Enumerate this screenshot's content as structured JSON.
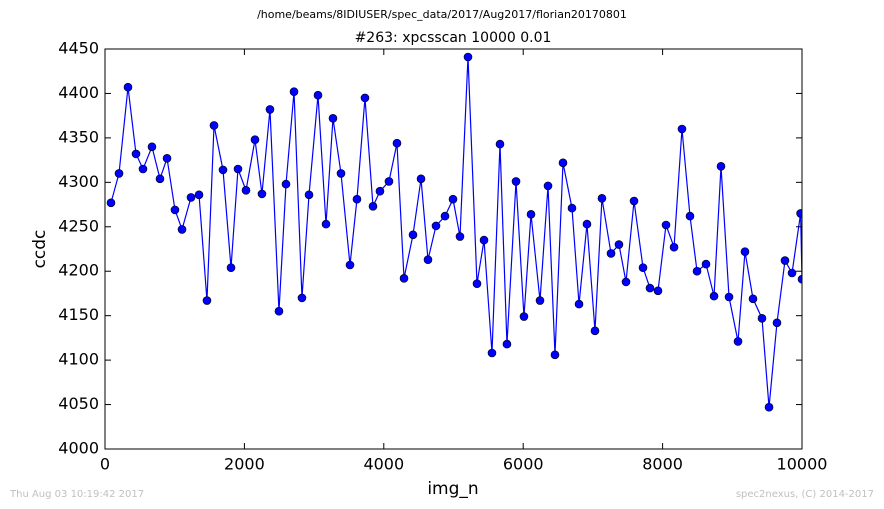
{
  "header": {
    "path": "/home/beams/8IDIUSER/spec_data/2017/Aug2017/florian20170801"
  },
  "chart_data": {
    "type": "line",
    "title": "#263: xpcsscan 10000 0.01",
    "x_label": "img_n",
    "y_label": "ccdc",
    "x": [
      86,
      201,
      330,
      445,
      545,
      674,
      789,
      890,
      1004,
      1105,
      1234,
      1349,
      1463,
      1564,
      1693,
      1808,
      1908,
      2023,
      2152,
      2252,
      2367,
      2496,
      2597,
      2712,
      2826,
      2927,
      3056,
      3171,
      3271,
      3386,
      3515,
      3615,
      3730,
      3845,
      3945,
      4074,
      4189,
      4290,
      4419,
      4534,
      4634,
      4749,
      4878,
      4993,
      5093,
      5208,
      5337,
      5438,
      5552,
      5667,
      5767,
      5897,
      6011,
      6112,
      6241,
      6356,
      6456,
      6571,
      6700,
      6801,
      6915,
      7030,
      7130,
      7260,
      7374,
      7475,
      7590,
      7719,
      7819,
      7934,
      8049,
      8164,
      8278,
      8393,
      8494,
      8623,
      8738,
      8838,
      8953,
      9082,
      9182,
      9297,
      9426,
      9527,
      9641,
      9756,
      9857,
      9980,
      10000
    ],
    "series": [
      {
        "name": "ccdc",
        "color": "#0000ff",
        "values": [
          4277,
          4310,
          4407,
          4332,
          4315,
          4340,
          4304,
          4327,
          4269,
          4247,
          4283,
          4286,
          4167,
          4364,
          4314,
          4204,
          4315,
          4291,
          4348,
          4287,
          4382,
          4155,
          4298,
          4402,
          4170,
          4286,
          4398,
          4253,
          4372,
          4310,
          4207,
          4281,
          4395,
          4273,
          4290,
          4301,
          4344,
          4192,
          4241,
          4304,
          4213,
          4251,
          4262,
          4281,
          4239,
          4441,
          4186,
          4235,
          4108,
          4343,
          4118,
          4301,
          4149,
          4264,
          4167,
          4296,
          4106,
          4322,
          4271,
          4163,
          4253,
          4133,
          4282,
          4220,
          4230,
          4188,
          4279,
          4204,
          4181,
          4178,
          4252,
          4227,
          4360,
          4262,
          4200,
          4208,
          4172,
          4318,
          4171,
          4121,
          4222,
          4169,
          4147,
          4047,
          4142,
          4212,
          4198,
          4265,
          4191
        ]
      }
    ],
    "xlim": [
      0,
      10000
    ],
    "xticks": [
      0,
      2000,
      4000,
      6000,
      8000,
      10000
    ],
    "ylim": [
      4000,
      4450
    ],
    "yticks": [
      4000,
      4050,
      4100,
      4150,
      4200,
      4250,
      4300,
      4350,
      4400,
      4450
    ]
  },
  "footer": {
    "left": "Thu Aug 03 10:19:42 2017",
    "right": "spec2nexus, (C) 2014-2017"
  }
}
